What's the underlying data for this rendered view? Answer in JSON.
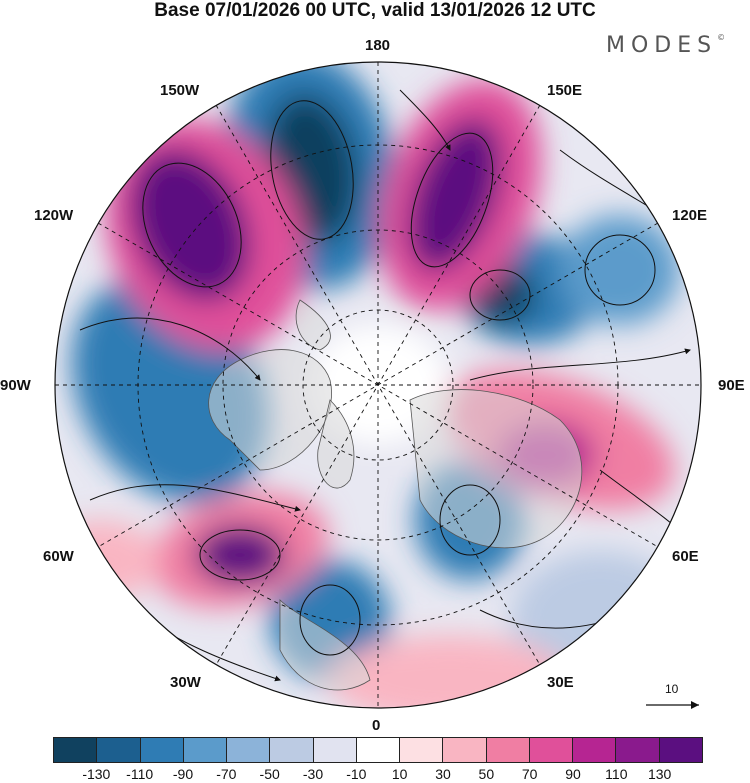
{
  "title": "Base 07/01/2026 00 UTC, valid 13/01/2026 12 UTC",
  "logo": "MODES",
  "logo_mark": "©",
  "longitude_labels": {
    "180": "180",
    "150E": "150E",
    "120E": "120E",
    "90E": "90E",
    "60E": "60E",
    "30E": "30E",
    "0": "0",
    "30W": "30W",
    "60W": "60W",
    "90W": "90W",
    "120W": "120W",
    "150W": "150W"
  },
  "vector_scale_label": "10",
  "colorbar": {
    "colors": [
      "#10415f",
      "#1c5f8f",
      "#2f7cb4",
      "#5b9bcb",
      "#8cb3d9",
      "#bccbe3",
      "#e1e3f0",
      "#ffffff",
      "#fde0e3",
      "#f9b5c2",
      "#f07ea3",
      "#e0509a",
      "#b62592",
      "#8a1a8d",
      "#5b0f80"
    ],
    "tick_labels": [
      "-130",
      "-110",
      "-90",
      "-70",
      "-50",
      "-30",
      "-10",
      "10",
      "30",
      "50",
      "70",
      "90",
      "110",
      "130"
    ]
  },
  "anomaly_centers": [
    {
      "lon": "165W",
      "sign": "negative",
      "value": -130
    },
    {
      "lon": "135W",
      "sign": "positive",
      "value": 130
    },
    {
      "lon": "165E",
      "sign": "positive",
      "value": 130
    },
    {
      "lon": "135E",
      "sign": "negative",
      "value": -110
    },
    {
      "lon": "110E",
      "sign": "negative",
      "value": -70
    },
    {
      "lon": "80E",
      "sign": "positive",
      "value": 90
    },
    {
      "lon": "100W",
      "sign": "negative",
      "value": -90
    },
    {
      "lon": "45W",
      "sign": "positive",
      "value": 130
    },
    {
      "lon": "15W",
      "sign": "negative",
      "value": -90
    },
    {
      "lon": "40E",
      "sign": "negative",
      "value": -90
    }
  ]
}
